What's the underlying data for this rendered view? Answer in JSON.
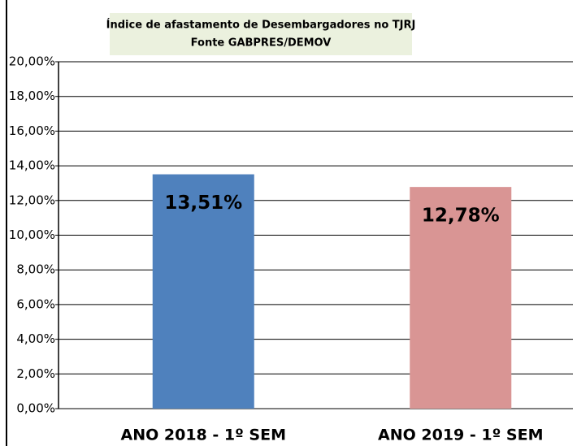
{
  "chart_data": {
    "type": "bar",
    "title": "Índice de afastamento  de Desembargadores no TJRJ",
    "subtitle": "Fonte  GABPRES/DEMOV",
    "categories": [
      "ANO 2018 - 1º  SEM",
      "ANO 2019 - 1º SEM"
    ],
    "values": [
      13.51,
      12.78
    ],
    "value_labels": [
      "13,51%",
      "12,78%"
    ],
    "colors": [
      "#4f81bd",
      "#d99594"
    ],
    "ylim": [
      0,
      20
    ],
    "yticks": [
      {
        "value": 0,
        "label": "0,00%"
      },
      {
        "value": 2,
        "label": "2,00%"
      },
      {
        "value": 4,
        "label": "4,00%"
      },
      {
        "value": 6,
        "label": "6,00%"
      },
      {
        "value": 8,
        "label": "8,00%"
      },
      {
        "value": 10,
        "label": "10,00%"
      },
      {
        "value": 12,
        "label": "12,00%"
      },
      {
        "value": 14,
        "label": "14,00%"
      },
      {
        "value": 16,
        "label": "16,00%"
      },
      {
        "value": 18,
        "label": "18,00%"
      },
      {
        "value": 20,
        "label": "20,00%"
      }
    ],
    "grid": true
  }
}
